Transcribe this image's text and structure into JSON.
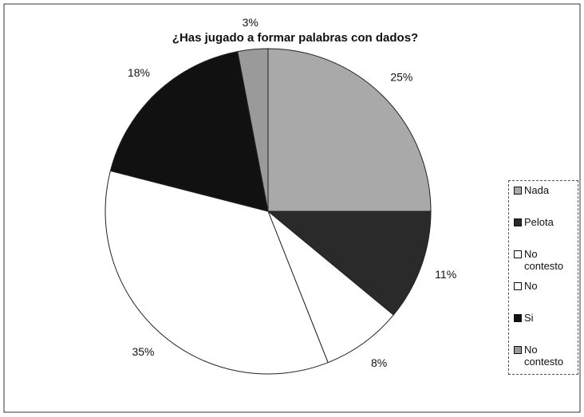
{
  "chart_data": {
    "type": "pie",
    "title": "¿Has jugado a formar palabras con dados?",
    "categories": [
      "Nada",
      "Pelota",
      "No contesto",
      "No",
      "Si",
      "No contesto"
    ],
    "values": [
      25,
      11,
      8,
      35,
      18,
      3
    ],
    "value_labels": [
      "25%",
      "11%",
      "8%",
      "35%",
      "18%",
      "3%"
    ],
    "colors": [
      "#a9a9a9",
      "#2a2a2a",
      "#ffffff",
      "#ffffff",
      "#111111",
      "#9a9a9a"
    ],
    "legend": "right"
  }
}
